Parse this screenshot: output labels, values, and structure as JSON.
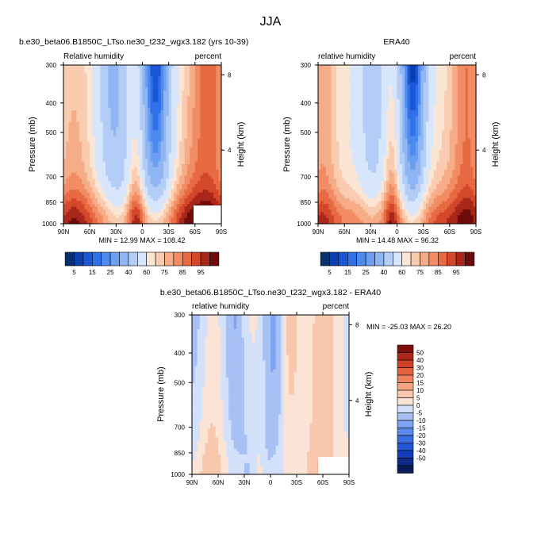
{
  "figure": {
    "title": "JJA"
  },
  "chart_data": [
    {
      "type": "heatmap",
      "subtitle": "b.e30_beta06.B1850C_LTso.ne30_t232_wgx3.182 (yrs 10-39)",
      "left_label": "Relative humidity",
      "right_label": "percent",
      "xlabel": "",
      "ylabel": "Pressure (mb)",
      "y2label": "Height (km)",
      "x_ticks": [
        "90N",
        "60N",
        "30N",
        "0",
        "30S",
        "60S",
        "90S"
      ],
      "x_tick_lat": [
        90,
        60,
        30,
        0,
        -30,
        -60,
        -90
      ],
      "y_ticks": [
        "300",
        "400",
        "500",
        "700",
        "850",
        "1000"
      ],
      "y_tick_p": [
        300,
        400,
        500,
        700,
        850,
        1000
      ],
      "y2_ticks": [
        "8",
        "4"
      ],
      "y2_tick_km": [
        8,
        4
      ],
      "ylim": [
        1000,
        300
      ],
      "xlim": [
        90,
        -90
      ],
      "stats": "MIN = 12.99   MAX = 108.42",
      "min": 12.99,
      "max": 108.42,
      "colorbar_labels": [
        "5",
        "15",
        "25",
        "40",
        "60",
        "75",
        "85",
        "95"
      ],
      "levels": [
        5,
        10,
        15,
        20,
        25,
        30,
        40,
        50,
        60,
        65,
        70,
        75,
        80,
        85,
        90,
        95
      ]
    },
    {
      "type": "heatmap",
      "subtitle": "ERA40",
      "left_label": "relative humidity",
      "right_label": "percent",
      "xlabel": "",
      "ylabel": "Pressure (mb)",
      "y2label": "Height (km)",
      "x_ticks": [
        "90N",
        "60N",
        "30N",
        "0",
        "30S",
        "60S",
        "90S"
      ],
      "x_tick_lat": [
        90,
        60,
        30,
        0,
        -30,
        -60,
        -90
      ],
      "y_ticks": [
        "300",
        "400",
        "500",
        "700",
        "850",
        "1000"
      ],
      "y_tick_p": [
        300,
        400,
        500,
        700,
        850,
        1000
      ],
      "y2_ticks": [
        "8",
        "4"
      ],
      "y2_tick_km": [
        8,
        4
      ],
      "ylim": [
        1000,
        300
      ],
      "xlim": [
        90,
        -90
      ],
      "stats": "MIN = 14.48   MAX = 96.32",
      "min": 14.48,
      "max": 96.32,
      "colorbar_labels": [
        "5",
        "15",
        "25",
        "40",
        "60",
        "75",
        "85",
        "95"
      ],
      "levels": [
        5,
        10,
        15,
        20,
        25,
        30,
        40,
        50,
        60,
        65,
        70,
        75,
        80,
        85,
        90,
        95
      ]
    },
    {
      "type": "heatmap",
      "subtitle": "b.e30_beta06.B1850C_LTso.ne30_t232_wgx3.182 - ERA40",
      "left_label": "relative humidity",
      "right_label": "percent",
      "xlabel": "",
      "ylabel": "Pressure (mb)",
      "y2label": "Height (km)",
      "x_ticks": [
        "90N",
        "60N",
        "30N",
        "0",
        "30S",
        "60S",
        "90S"
      ],
      "x_tick_lat": [
        90,
        60,
        30,
        0,
        -30,
        -60,
        -90
      ],
      "y_ticks": [
        "300",
        "400",
        "500",
        "700",
        "850",
        "1000"
      ],
      "y_tick_p": [
        300,
        400,
        500,
        700,
        850,
        1000
      ],
      "y2_ticks": [
        "8",
        "4"
      ],
      "y2_tick_km": [
        8,
        4
      ],
      "ylim": [
        1000,
        300
      ],
      "xlim": [
        90,
        -90
      ],
      "stats": "MIN = -25.03   MAX =  26.20",
      "min": -25.03,
      "max": 26.2,
      "colorbar_labels": [
        "50",
        "40",
        "30",
        "20",
        "15",
        "10",
        "5",
        "0",
        "-5",
        "-10",
        "-15",
        "-20",
        "-30",
        "-40",
        "-50"
      ],
      "levels": [
        -50,
        -40,
        -30,
        -20,
        -15,
        -10,
        -5,
        0,
        5,
        10,
        15,
        20,
        30,
        40,
        50
      ]
    }
  ]
}
